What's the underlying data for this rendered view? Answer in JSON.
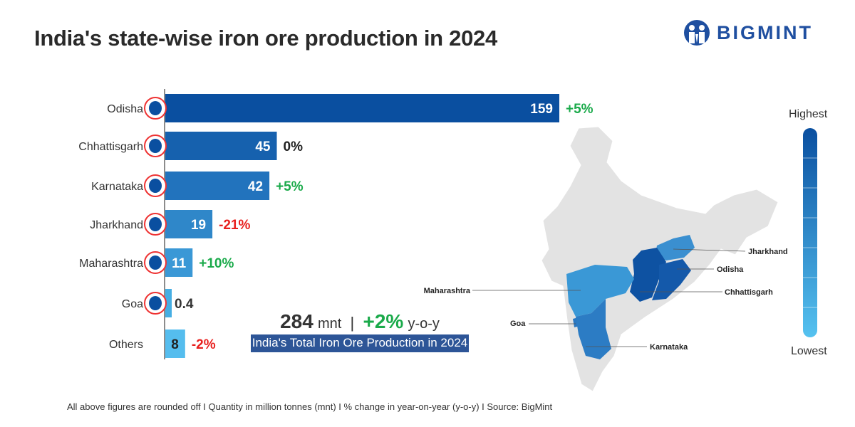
{
  "title": "India's state-wise iron ore production in 2024",
  "logo": {
    "text": "BIGMINT",
    "color": "#1f4fa0"
  },
  "chart_data": {
    "type": "bar",
    "orientation": "horizontal",
    "title": "India's state-wise iron ore production in 2024",
    "unit": "mnt",
    "categories": [
      "Odisha",
      "Chhattisgarh",
      "Karnataka",
      "Jharkhand",
      "Maharashtra",
      "Goa",
      "Others"
    ],
    "values": [
      159,
      45,
      42,
      19,
      11,
      0.4,
      8
    ],
    "value_labels": [
      "159",
      "45",
      "42",
      "19",
      "11",
      "0.4",
      "8"
    ],
    "yoy_change": [
      "+5%",
      "0%",
      "+5%",
      "-21%",
      "+10%",
      "",
      "-2%"
    ],
    "bar_colors": [
      "#0a4fa0",
      "#1661ae",
      "#2273bd",
      "#2f87c9",
      "#3a98d6",
      "#46aee3",
      "#55bdee"
    ],
    "change_colors": {
      "positive": "#1aaa4a",
      "negative": "#e8201e",
      "neutral": "#222222"
    },
    "grid": false
  },
  "total": {
    "value": "284",
    "unit": "mnt",
    "separator": "|",
    "change": "+2%",
    "change_suffix": "y-o-y",
    "label": "India's Total Iron Ore Production in 2024"
  },
  "map": {
    "labels": [
      "Jharkhand",
      "Odisha",
      "Maharashtra",
      "Chhattisgarh",
      "Goa",
      "Karnataka"
    ],
    "legend_high": "Highest",
    "legend_low": "Lowest",
    "base_color": "#e3e3e3"
  },
  "footer": "All above figures are rounded off  I  Quantity in million tonnes (mnt)  I  % change in year-on-year (y-o-y)  I  Source: BigMint"
}
